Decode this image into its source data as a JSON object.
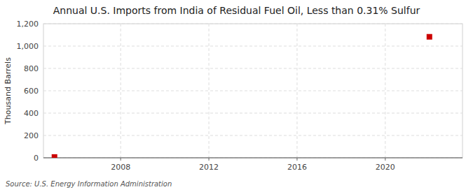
{
  "chart_data": {
    "type": "scatter",
    "title": "Annual U.S. Imports from India of Residual Fuel Oil, Less than 0.31% Sulfur",
    "ylabel": "Thousand Barrels",
    "source": "Source: U.S. Energy Information Administration",
    "x": [
      2005,
      2022
    ],
    "values": [
      7,
      1083
    ],
    "color": "#cc0000",
    "marker": "square",
    "xlim": [
      2004.5,
      2023.5
    ],
    "ylim": [
      0,
      1200
    ],
    "xticks": [
      2008,
      2012,
      2016,
      2020
    ],
    "yticks": [
      0,
      200,
      400,
      600,
      800,
      {
        "value": 1000,
        "label": "1,000"
      },
      {
        "value": 1200,
        "label": "1,200"
      }
    ],
    "grid": true
  }
}
